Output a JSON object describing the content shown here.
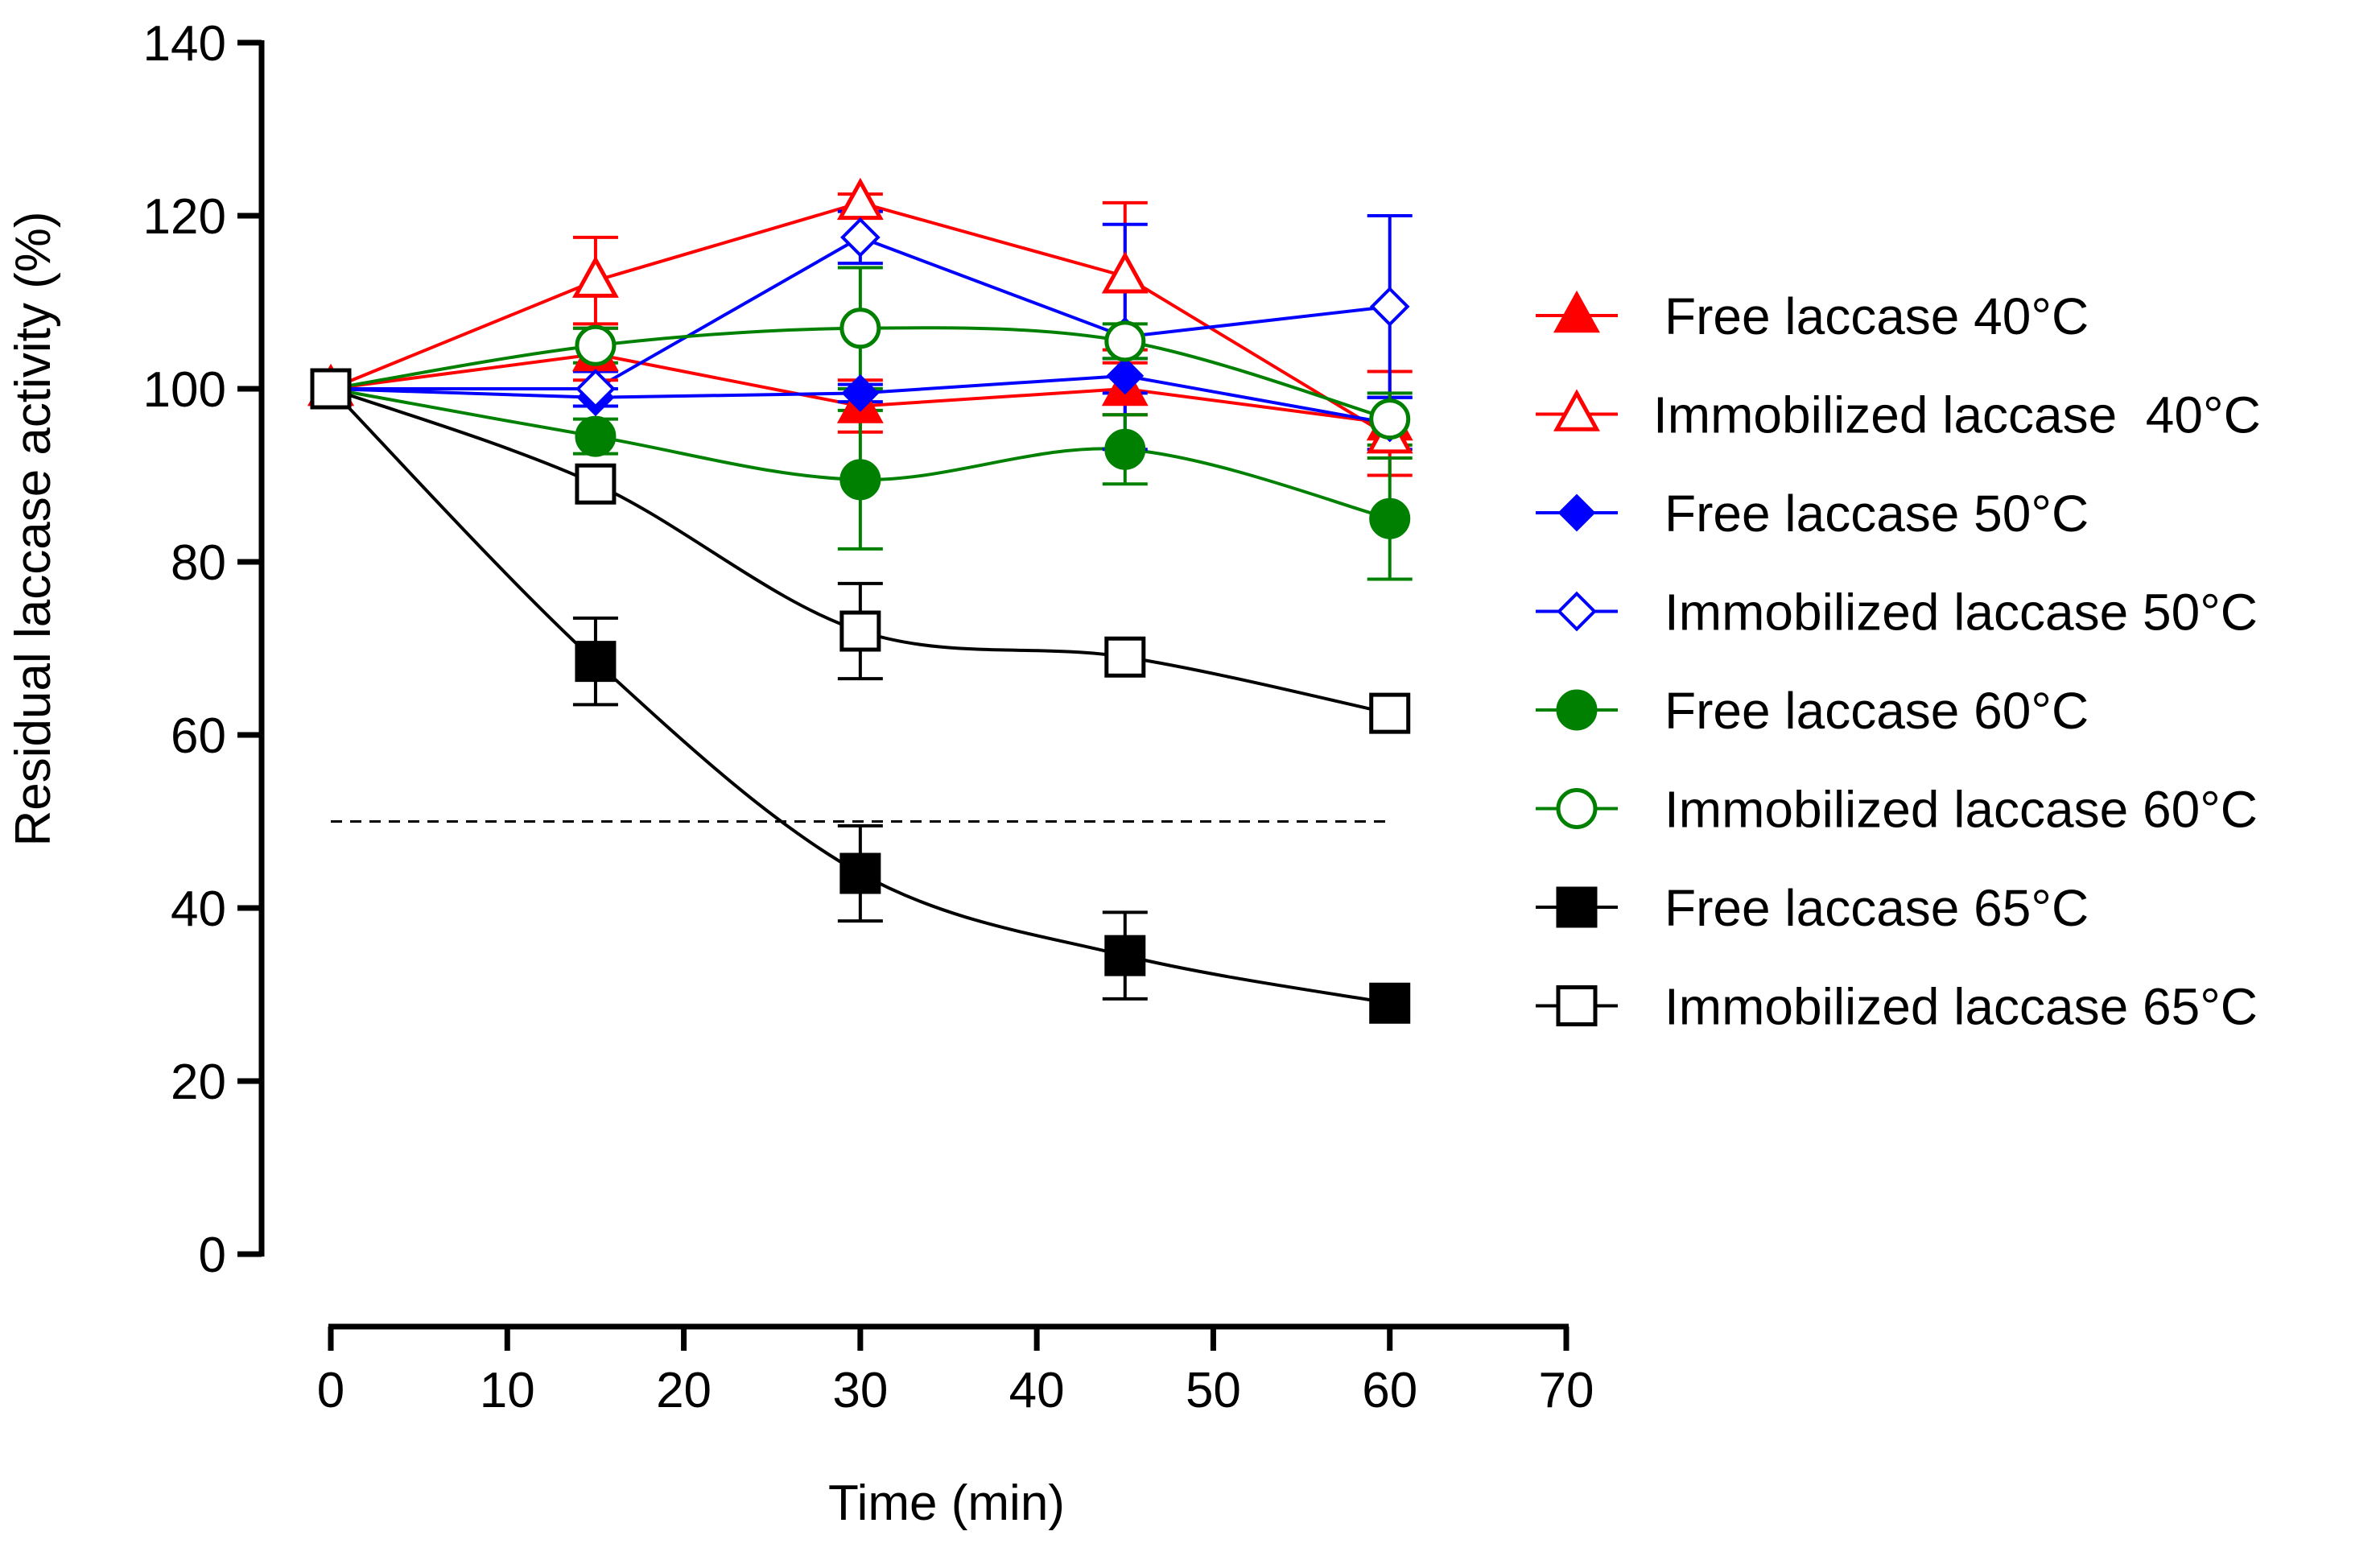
{
  "chart_data": {
    "type": "line",
    "xlabel": "Time (min)",
    "ylabel": "Residual laccase activity (%)",
    "xlim": [
      0,
      70
    ],
    "ylim": [
      0,
      140
    ],
    "x_ticks": [
      0,
      10,
      20,
      30,
      40,
      50,
      60,
      70
    ],
    "y_ticks": [
      0,
      20,
      40,
      60,
      80,
      100,
      120,
      140
    ],
    "x_tick_labels": [
      "0",
      "10",
      "20",
      "30",
      "40",
      "50",
      "60",
      "70"
    ],
    "y_tick_labels": [
      "0",
      "20",
      "40",
      "60",
      "80",
      "100",
      "120",
      "140"
    ],
    "grid": false,
    "legend_position": "right",
    "reference_line": {
      "y": 50,
      "x_range": [
        0,
        60
      ],
      "style": "dashed"
    },
    "series": [
      {
        "name": "Free laccase 40°C",
        "color": "#ff0000",
        "marker": "triangle",
        "filled": true,
        "connect": "straight",
        "x": [
          0,
          15,
          30,
          45,
          60
        ],
        "y": [
          100,
          104,
          98,
          100,
          96
        ],
        "err": [
          0,
          3,
          3,
          3,
          6
        ]
      },
      {
        "name": "Immobilized laccase  40°C",
        "color": "#ff0000",
        "marker": "triangle",
        "filled": false,
        "connect": "straight",
        "x": [
          0,
          15,
          30,
          45,
          60
        ],
        "y": [
          100,
          112.5,
          121.5,
          113,
          94.5
        ],
        "err": [
          0,
          5,
          1,
          8.5,
          0
        ]
      },
      {
        "name": "Free laccase 50°C",
        "color": "#0000ff",
        "marker": "diamond",
        "filled": true,
        "connect": "straight",
        "x": [
          0,
          15,
          30,
          45,
          60
        ],
        "y": [
          100,
          99,
          99.5,
          101.5,
          96
        ],
        "err": [
          0,
          1,
          1,
          2,
          3
        ]
      },
      {
        "name": "Immobilized laccase 50°C",
        "color": "#0000ff",
        "marker": "diamond",
        "filled": false,
        "connect": "straight",
        "x": [
          0,
          15,
          30,
          45,
          60
        ],
        "y": [
          100,
          100,
          117.5,
          106,
          109.5
        ],
        "err": [
          0,
          2,
          3,
          13,
          10.5
        ]
      },
      {
        "name": "Free laccase 60°C",
        "color": "#008000",
        "marker": "circle",
        "filled": true,
        "connect": "curve",
        "x": [
          0,
          15,
          30,
          45,
          60
        ],
        "y": [
          100,
          94.5,
          89.5,
          93,
          85
        ],
        "err": [
          0,
          2,
          8,
          4,
          7
        ]
      },
      {
        "name": "Immobilized laccase 60°C",
        "color": "#008000",
        "marker": "circle",
        "filled": false,
        "connect": "curve",
        "x": [
          0,
          15,
          30,
          45,
          60
        ],
        "y": [
          100,
          105,
          107,
          105.5,
          96.5
        ],
        "err": [
          0,
          2,
          7,
          2,
          3
        ]
      },
      {
        "name": "Free laccase 65°C",
        "color": "#000000",
        "marker": "square",
        "filled": true,
        "connect": "curve",
        "x": [
          0,
          15,
          30,
          45,
          60
        ],
        "y": [
          100,
          68.5,
          44,
          34.5,
          29
        ],
        "err": [
          0,
          5,
          5.5,
          5,
          0
        ]
      },
      {
        "name": "Immobilized laccase 65°C",
        "color": "#000000",
        "marker": "square",
        "filled": false,
        "connect": "curve",
        "x": [
          0,
          15,
          30,
          45,
          60
        ],
        "y": [
          100,
          89,
          72,
          69,
          62.5
        ],
        "err": [
          0,
          0,
          5.5,
          0,
          0
        ]
      }
    ]
  }
}
